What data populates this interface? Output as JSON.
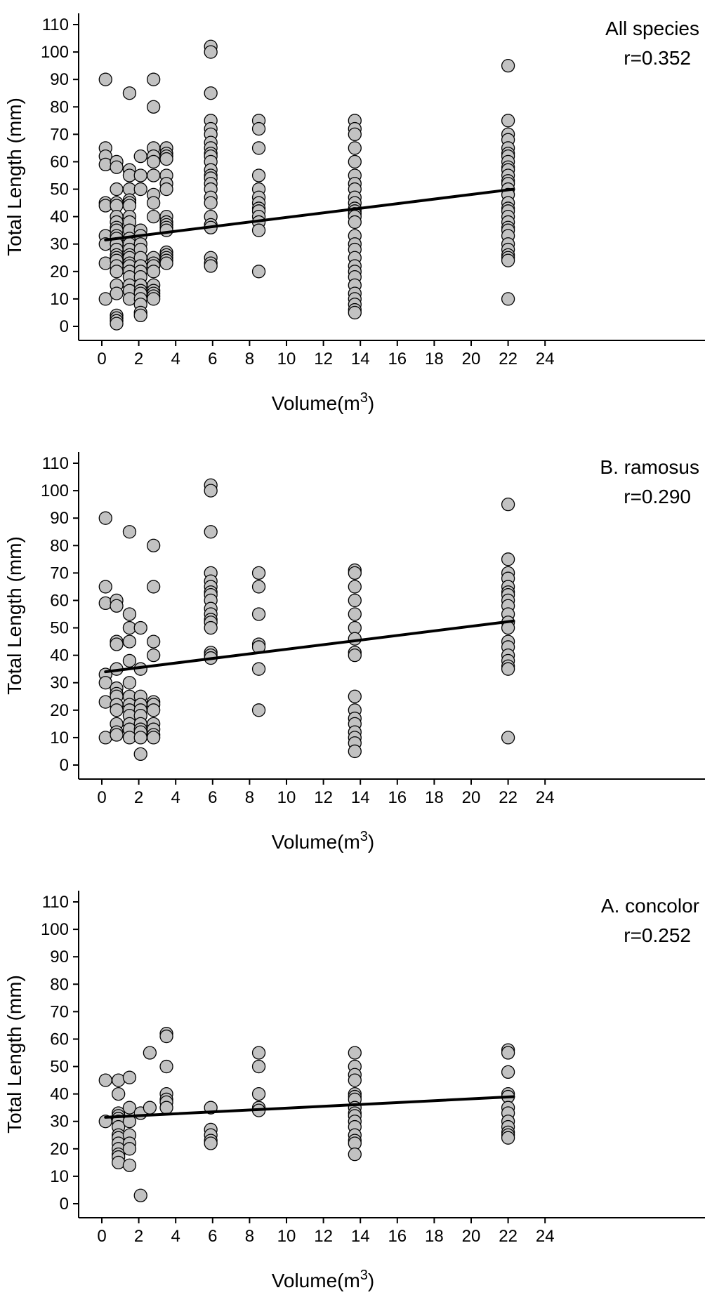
{
  "figure": {
    "background": "#ffffff",
    "axis_color": "#000000",
    "text_color": "#000000",
    "point_fill": "#c2c2c2",
    "point_stroke": "#000000",
    "regression_color": "#000000"
  },
  "chart_data": [
    {
      "type": "scatter",
      "title": "All species",
      "annotation": "r=0.352",
      "xlabel": {
        "prefix": "Volume(m",
        "sup": "3",
        "suffix": ")"
      },
      "ylabel": "Total Length (mm)",
      "xlim": [
        -1.3,
        33
      ],
      "ylim": [
        -5,
        114
      ],
      "xticks": [
        0,
        2,
        4,
        6,
        8,
        10,
        12,
        14,
        16,
        18,
        20,
        22,
        24
      ],
      "yticks": [
        0,
        10,
        20,
        30,
        40,
        50,
        60,
        70,
        80,
        90,
        100,
        110
      ],
      "grid": false,
      "legend": false,
      "regression": {
        "x0": 0.2,
        "y0": 31.5,
        "x1": 22.3,
        "y1": 50
      },
      "columns": [
        {
          "x": 0.2,
          "ys": [
            90,
            65,
            62,
            59,
            45,
            44,
            33,
            30,
            23,
            10
          ]
        },
        {
          "x": 0.8,
          "ys": [
            60,
            58,
            50,
            45,
            44,
            40,
            38,
            36,
            35,
            33,
            32,
            30,
            28,
            26,
            25,
            24,
            22,
            20,
            15,
            12,
            4,
            3,
            2,
            1
          ]
        },
        {
          "x": 1.5,
          "ys": [
            85,
            57,
            55,
            50,
            46,
            45,
            44,
            40,
            38,
            35,
            32,
            30,
            28,
            26,
            25,
            23,
            22,
            20,
            18,
            15,
            13,
            10
          ]
        },
        {
          "x": 2.1,
          "ys": [
            62,
            55,
            50,
            35,
            33,
            30,
            28,
            25,
            22,
            20,
            18,
            15,
            13,
            12,
            10,
            8,
            5,
            4
          ]
        },
        {
          "x": 2.8,
          "ys": [
            90,
            80,
            65,
            62,
            60,
            55,
            48,
            45,
            40,
            25,
            23,
            22,
            20,
            15,
            13,
            12,
            11,
            10
          ]
        },
        {
          "x": 3.5,
          "ys": [
            65,
            63,
            62,
            61,
            55,
            52,
            50,
            40,
            38,
            37,
            36,
            35,
            27,
            26,
            25,
            24,
            23
          ]
        },
        {
          "x": 5.9,
          "ys": [
            102,
            100,
            85,
            75,
            72,
            70,
            67,
            65,
            63,
            62,
            60,
            57,
            55,
            54,
            52,
            50,
            47,
            45,
            40,
            37,
            36,
            25,
            23,
            22
          ]
        },
        {
          "x": 8.5,
          "ys": [
            75,
            72,
            65,
            55,
            50,
            47,
            45,
            43,
            42,
            40,
            38,
            35,
            20
          ]
        },
        {
          "x": 13.7,
          "ys": [
            75,
            72,
            70,
            65,
            60,
            55,
            52,
            50,
            47,
            45,
            43,
            42,
            41,
            40,
            38,
            33,
            30,
            28,
            25,
            22,
            20,
            18,
            15,
            12,
            10,
            8,
            6,
            5
          ]
        },
        {
          "x": 22,
          "ys": [
            95,
            75,
            70,
            68,
            65,
            63,
            62,
            60,
            58,
            57,
            55,
            53,
            52,
            50,
            48,
            45,
            43,
            42,
            40,
            38,
            36,
            35,
            33,
            30,
            28,
            26,
            25,
            24,
            10
          ]
        }
      ]
    },
    {
      "type": "scatter",
      "title": "B. ramosus",
      "annotation": "r=0.290",
      "xlabel": {
        "prefix": "Volume(m",
        "sup": "3",
        "suffix": ")"
      },
      "ylabel": "Total Length (mm)",
      "xlim": [
        -1.3,
        33
      ],
      "ylim": [
        -5,
        114
      ],
      "xticks": [
        0,
        2,
        4,
        6,
        8,
        10,
        12,
        14,
        16,
        18,
        20,
        22,
        24
      ],
      "yticks": [
        0,
        10,
        20,
        30,
        40,
        50,
        60,
        70,
        80,
        90,
        100,
        110
      ],
      "grid": false,
      "legend": false,
      "regression": {
        "x0": 0.2,
        "y0": 34,
        "x1": 22.3,
        "y1": 52.5
      },
      "columns": [
        {
          "x": 0.2,
          "ys": [
            90,
            65,
            59,
            33,
            30,
            23,
            10
          ]
        },
        {
          "x": 0.8,
          "ys": [
            60,
            58,
            45,
            44,
            35,
            28,
            26,
            25,
            22,
            20,
            15,
            12,
            11
          ]
        },
        {
          "x": 1.5,
          "ys": [
            85,
            55,
            50,
            45,
            38,
            30,
            25,
            22,
            20,
            18,
            15,
            13,
            10
          ]
        },
        {
          "x": 2.1,
          "ys": [
            50,
            35,
            25,
            22,
            20,
            18,
            15,
            13,
            12,
            10,
            4
          ]
        },
        {
          "x": 2.8,
          "ys": [
            80,
            65,
            45,
            40,
            23,
            22,
            20,
            15,
            13,
            11,
            10
          ]
        },
        {
          "x": 5.9,
          "ys": [
            102,
            100,
            85,
            70,
            67,
            65,
            63,
            62,
            60,
            57,
            55,
            53,
            52,
            50,
            41,
            40,
            39
          ]
        },
        {
          "x": 8.5,
          "ys": [
            70,
            65,
            55,
            44,
            43,
            35,
            20
          ]
        },
        {
          "x": 13.7,
          "ys": [
            71,
            70,
            65,
            60,
            55,
            50,
            46,
            41,
            40,
            25,
            20,
            17,
            15,
            12,
            10,
            8,
            5
          ]
        },
        {
          "x": 22,
          "ys": [
            95,
            75,
            70,
            68,
            65,
            63,
            62,
            60,
            58,
            55,
            52,
            50,
            45,
            43,
            40,
            38,
            36,
            35,
            10
          ]
        }
      ]
    },
    {
      "type": "scatter",
      "title": "A. concolor",
      "annotation": "r=0.252",
      "xlabel": {
        "prefix": "Volume(m",
        "sup": "3",
        "suffix": ")"
      },
      "ylabel": "Total Length (mm)",
      "xlim": [
        -1.3,
        33
      ],
      "ylim": [
        -5,
        114
      ],
      "xticks": [
        0,
        2,
        4,
        6,
        8,
        10,
        12,
        14,
        16,
        18,
        20,
        22,
        24
      ],
      "yticks": [
        0,
        10,
        20,
        30,
        40,
        50,
        60,
        70,
        80,
        90,
        100,
        110
      ],
      "grid": false,
      "legend": false,
      "regression": {
        "x0": 0.2,
        "y0": 31.5,
        "x1": 22.3,
        "y1": 39
      },
      "columns": [
        {
          "x": 0.2,
          "ys": [
            45,
            30
          ]
        },
        {
          "x": 0.9,
          "ys": [
            45,
            40,
            33,
            32,
            31,
            30,
            28,
            25,
            24,
            22,
            20,
            18,
            17,
            15
          ]
        },
        {
          "x": 1.5,
          "ys": [
            46,
            35,
            30,
            25,
            22,
            20,
            14
          ]
        },
        {
          "x": 2.1,
          "ys": [
            33,
            3
          ]
        },
        {
          "x": 2.6,
          "ys": [
            55,
            35
          ]
        },
        {
          "x": 3.5,
          "ys": [
            62,
            61,
            50,
            40,
            38,
            37,
            35
          ]
        },
        {
          "x": 5.9,
          "ys": [
            35,
            27,
            25,
            23,
            22
          ]
        },
        {
          "x": 8.5,
          "ys": [
            55,
            50,
            40,
            35,
            34
          ]
        },
        {
          "x": 13.7,
          "ys": [
            55,
            50,
            47,
            45,
            40,
            39,
            38,
            35,
            33,
            32,
            30,
            28,
            25,
            23,
            22,
            18
          ]
        },
        {
          "x": 22,
          "ys": [
            56,
            55,
            48,
            40,
            39,
            35,
            33,
            30,
            28,
            26,
            25,
            24
          ]
        }
      ]
    }
  ]
}
